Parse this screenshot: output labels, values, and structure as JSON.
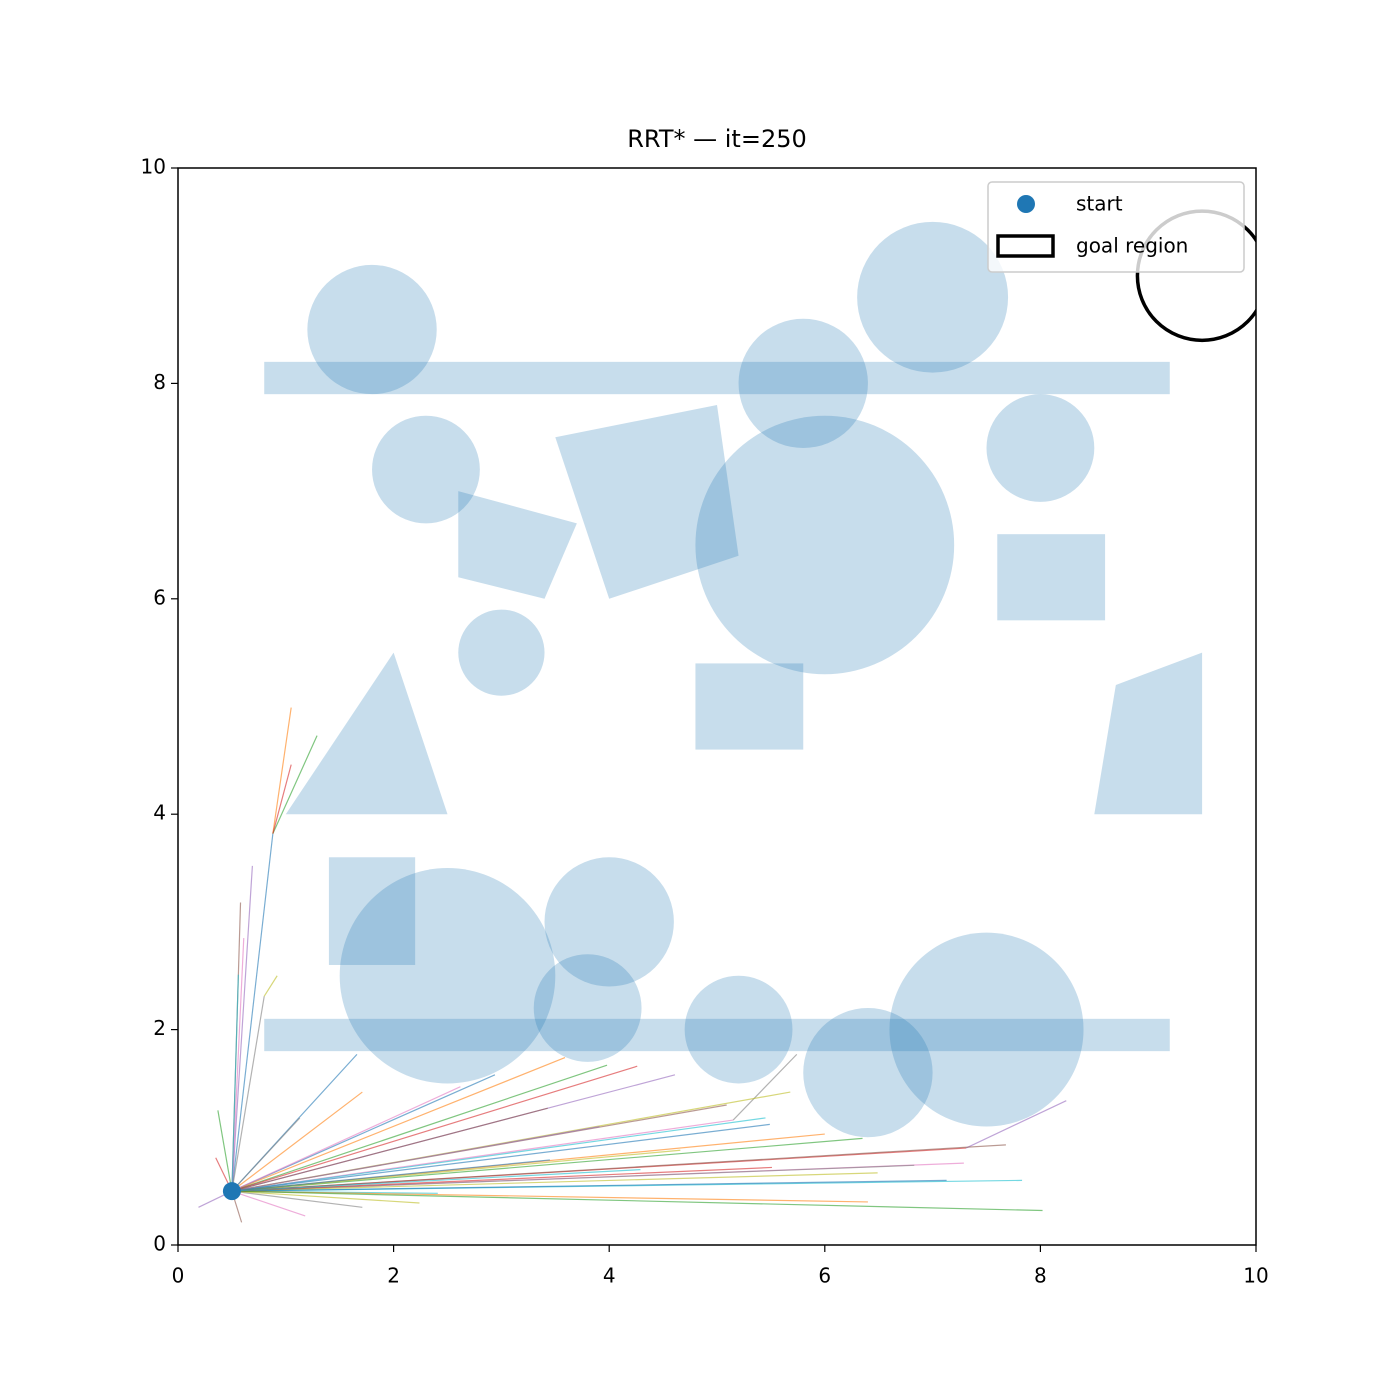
{
  "chart_data": {
    "type": "planner",
    "title": "RRT* — it=250",
    "xlim": [
      0,
      10
    ],
    "ylim": [
      0,
      10
    ],
    "xticks": [
      0,
      2,
      4,
      6,
      8,
      10
    ],
    "yticks": [
      0,
      2,
      4,
      6,
      8,
      10
    ],
    "legend": "upper right",
    "obstacles": {
      "color": "#1f77b4",
      "circles": [
        [
          1.8,
          8.5,
          0.6
        ],
        [
          5.8,
          8.0,
          0.6
        ],
        [
          7.0,
          8.8,
          0.7
        ],
        [
          2.3,
          7.2,
          0.5
        ],
        [
          6.0,
          6.5,
          1.2
        ],
        [
          8.0,
          7.4,
          0.5
        ],
        [
          3.0,
          5.5,
          0.4
        ],
        [
          2.5,
          2.5,
          1.0
        ],
        [
          4.0,
          3.0,
          0.6
        ],
        [
          3.8,
          2.2,
          0.5
        ],
        [
          5.2,
          2.0,
          0.5
        ],
        [
          6.4,
          1.6,
          0.6
        ],
        [
          7.5,
          2.0,
          0.9
        ]
      ],
      "rects": [
        [
          0.8,
          7.9,
          8.4,
          0.3
        ],
        [
          0.8,
          1.8,
          8.4,
          0.3
        ],
        [
          7.6,
          5.8,
          1.0,
          0.8
        ],
        [
          4.8,
          4.6,
          1.0,
          0.8
        ],
        [
          1.4,
          2.6,
          0.8,
          1.0
        ]
      ],
      "polygons": [
        [
          [
            1.0,
            4.0
          ],
          [
            2.0,
            5.5
          ],
          [
            2.5,
            4.0
          ]
        ],
        [
          [
            2.6,
            7.0
          ],
          [
            3.7,
            6.7
          ],
          [
            3.4,
            6.0
          ],
          [
            2.6,
            6.2
          ]
        ],
        [
          [
            3.5,
            7.5
          ],
          [
            5.0,
            7.8
          ],
          [
            5.2,
            6.4
          ],
          [
            4.0,
            6.0
          ]
        ],
        [
          [
            8.5,
            4.0
          ],
          [
            9.5,
            4.0
          ],
          [
            9.5,
            5.5
          ],
          [
            8.7,
            5.2
          ]
        ]
      ]
    },
    "start": {
      "name": "start",
      "x": 0.5,
      "y": 0.5,
      "color": "#1f77b4"
    },
    "goal": {
      "name": "goal region",
      "x": 9.5,
      "y": 9.0,
      "r": 0.6,
      "color": "#000000"
    },
    "edge_colors": [
      "#1f77b4",
      "#ff7f0e",
      "#2ca02c",
      "#d62728",
      "#9467bd",
      "#8c564b",
      "#e377c2",
      "#7f7f7f",
      "#bcbd22",
      "#17becf"
    ],
    "edges": [
      [
        0.5,
        0.5,
        0.88,
        3.82
      ],
      [
        0.88,
        3.82,
        1.05,
        4.99
      ],
      [
        0.88,
        3.82,
        1.29,
        4.73
      ],
      [
        0.88,
        3.82,
        1.05,
        4.46
      ],
      [
        0.5,
        0.5,
        0.69,
        3.52
      ],
      [
        0.5,
        0.5,
        0.58,
        3.18
      ],
      [
        0.5,
        0.5,
        0.61,
        2.85
      ],
      [
        0.5,
        0.5,
        0.8,
        2.31
      ],
      [
        0.8,
        2.31,
        0.92,
        2.5
      ],
      [
        0.5,
        0.5,
        0.56,
        2.51
      ],
      [
        0.5,
        0.5,
        1.66,
        1.77
      ],
      [
        0.5,
        0.5,
        1.71,
        1.42
      ],
      [
        0.5,
        0.5,
        0.37,
        1.25
      ],
      [
        0.5,
        0.5,
        0.35,
        0.81
      ],
      [
        0.5,
        0.5,
        0.19,
        0.35
      ],
      [
        0.5,
        0.5,
        0.59,
        0.21
      ],
      [
        0.5,
        0.5,
        1.18,
        0.27
      ],
      [
        0.5,
        0.5,
        1.71,
        0.35
      ],
      [
        0.5,
        0.5,
        2.24,
        0.39
      ],
      [
        0.5,
        0.5,
        2.41,
        0.48
      ],
      [
        0.5,
        0.5,
        2.94,
        1.58
      ],
      [
        0.5,
        0.5,
        3.59,
        1.74
      ],
      [
        0.5,
        0.5,
        3.98,
        1.67
      ],
      [
        0.5,
        0.5,
        4.26,
        1.66
      ],
      [
        0.5,
        0.5,
        4.61,
        1.58
      ],
      [
        0.5,
        0.5,
        5.09,
        1.3
      ],
      [
        0.5,
        0.5,
        5.15,
        1.16
      ],
      [
        5.15,
        1.16,
        5.74,
        1.77
      ],
      [
        0.5,
        0.5,
        5.68,
        1.42
      ],
      [
        0.5,
        0.5,
        5.45,
        1.18
      ],
      [
        0.5,
        0.5,
        5.49,
        1.12
      ],
      [
        0.5,
        0.5,
        6.0,
        1.03
      ],
      [
        0.5,
        0.5,
        6.35,
        0.99
      ],
      [
        0.5,
        0.5,
        7.31,
        0.9
      ],
      [
        7.31,
        0.9,
        8.24,
        1.34
      ],
      [
        0.5,
        0.5,
        7.68,
        0.93
      ],
      [
        0.5,
        0.5,
        7.29,
        0.76
      ],
      [
        0.5,
        0.5,
        6.83,
        0.74
      ],
      [
        0.5,
        0.5,
        6.49,
        0.67
      ],
      [
        0.5,
        0.5,
        7.83,
        0.6
      ],
      [
        0.5,
        0.5,
        7.13,
        0.6
      ],
      [
        0.5,
        0.5,
        6.4,
        0.4
      ],
      [
        0.5,
        0.5,
        8.02,
        0.32
      ],
      [
        0.5,
        0.5,
        5.51,
        0.72
      ],
      [
        0.5,
        0.5,
        3.91,
        1.1
      ],
      [
        0.5,
        0.5,
        3.43,
        1.27
      ],
      [
        0.5,
        0.5,
        2.62,
        1.47
      ],
      [
        0.5,
        0.5,
        1.13,
        1.18
      ],
      [
        0.5,
        0.5,
        4.66,
        0.88
      ],
      [
        0.5,
        0.5,
        4.29,
        0.7
      ],
      [
        0.5,
        0.5,
        3.45,
        0.79
      ]
    ]
  }
}
